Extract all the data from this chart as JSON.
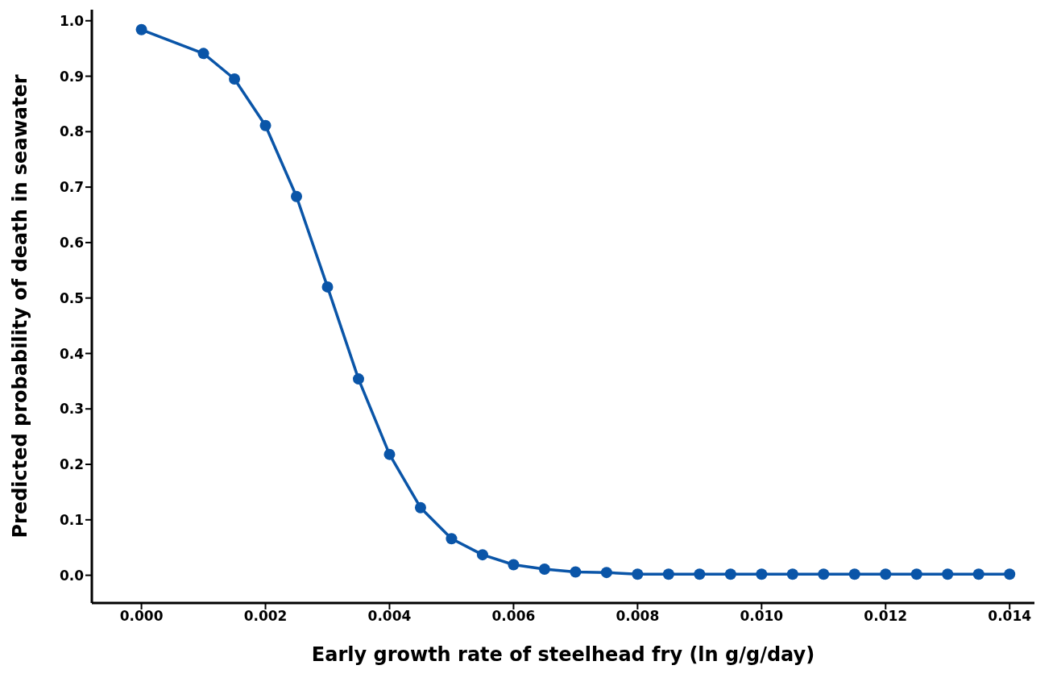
{
  "chart_data": {
    "type": "line",
    "xlabel": "Early growth rate of steelhead fry (ln g/g/day)",
    "ylabel": "Predicted probability of death in seawater",
    "x": [
      0,
      0.001,
      0.0015,
      0.002,
      0.0025,
      0.003,
      0.0035,
      0.004,
      0.0045,
      0.005,
      0.0055,
      0.006,
      0.0065,
      0.007,
      0.0075,
      0.008,
      0.0085,
      0.009,
      0.0095,
      0.01,
      0.0105,
      0.011,
      0.0115,
      0.012,
      0.0125,
      0.013,
      0.0135,
      0.014
    ],
    "series": [
      {
        "color": "#0a55a8",
        "values": [
          0.984,
          0.941,
          0.895,
          0.811,
          0.683,
          0.52,
          0.354,
          0.218,
          0.122,
          0.066,
          0.037,
          0.019,
          0.011,
          0.006,
          0.005,
          0.002,
          0.002,
          0.002,
          0.002,
          0.002,
          0.002,
          0.002,
          0.002,
          0.002,
          0.002,
          0.002,
          0.002,
          0.002
        ]
      }
    ],
    "xlim": [
      -0.0008,
      0.0144
    ],
    "xticks": [
      {
        "value": 0,
        "label": "0.000"
      },
      {
        "value": 0.002,
        "label": "0.002"
      },
      {
        "value": 0.004,
        "label": "0.004"
      },
      {
        "value": 0.006,
        "label": "0.006"
      },
      {
        "value": 0.008,
        "label": "0.008"
      },
      {
        "value": 0.01,
        "label": "0.010"
      },
      {
        "value": 0.012,
        "label": "0.012"
      },
      {
        "value": 0.014,
        "label": "0.014"
      }
    ],
    "ylim": [
      -0.05,
      1.02
    ],
    "yticks": [
      {
        "value": 0,
        "label": "0.0"
      },
      {
        "value": 0.1,
        "label": "0.1"
      },
      {
        "value": 0.2,
        "label": "0.2"
      },
      {
        "value": 0.3,
        "label": "0.3"
      },
      {
        "value": 0.4,
        "label": "0.4"
      },
      {
        "value": 0.5,
        "label": "0.5"
      },
      {
        "value": 0.6,
        "label": "0.6"
      },
      {
        "value": 0.7,
        "label": "0.7"
      },
      {
        "value": 0.8,
        "label": "0.8"
      },
      {
        "value": 0.9,
        "label": "0.9"
      },
      {
        "value": 1,
        "label": "1.0"
      }
    ],
    "grid": false,
    "legend": false,
    "marker": "circle",
    "line_style": "solid"
  }
}
